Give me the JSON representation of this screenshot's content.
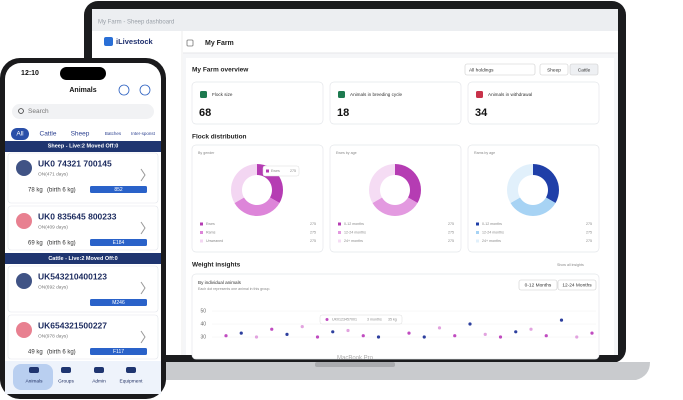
{
  "laptop": {
    "window_title": "My Farm - Sheep dashboard",
    "logo": "iLivestock",
    "page_title": "My Farm",
    "model": "MacBook Pro",
    "overview": {
      "title": "My Farm overview",
      "holdings": "All holdings",
      "filters": [
        "Sheep",
        "Cattle"
      ],
      "kpis": [
        {
          "label": "Flock size",
          "value": 68
        },
        {
          "label": "Animals in breeding cycle",
          "value": 18
        },
        {
          "label": "Animals in withdrawal",
          "value": 34
        }
      ]
    },
    "distribution": {
      "title": "Flock distribution",
      "charts": [
        {
          "type": "donut",
          "title": "By gender",
          "categories": [
            "Ewes",
            "Rams",
            "Unweaned"
          ],
          "values": [
            275,
            275,
            275
          ],
          "colors": [
            "#b53cb3",
            "#dd85d9",
            "#f3d6f2"
          ],
          "tooltip": {
            "label": "Ewes",
            "value": 275
          }
        },
        {
          "type": "donut",
          "title": "Ewes by age",
          "categories": [
            "0-12 months",
            "12-24 months",
            "24+ months"
          ],
          "values": [
            275,
            275,
            275
          ],
          "colors": [
            "#b53cb3",
            "#e39ae0",
            "#f5dcf4"
          ]
        },
        {
          "type": "donut",
          "title": "Rams by age",
          "categories": [
            "0-12 months",
            "12-24 months",
            "24+ months"
          ],
          "values": [
            275,
            275,
            275
          ],
          "colors": [
            "#1f3fa8",
            "#a7d3f4",
            "#e1f0fb"
          ]
        }
      ]
    },
    "weight": {
      "title": "Weight insights",
      "link": "Show all insights",
      "chart": {
        "type": "scatter",
        "title": "By individual animals",
        "subtitle": "Each dot represents one animal in this group.",
        "ranges": [
          "0-12 Months",
          "12-24 Months"
        ],
        "ylim": [
          30,
          50
        ],
        "yticks": [
          50,
          40,
          30
        ],
        "values": [
          31,
          33,
          30,
          36,
          32,
          38,
          30,
          34,
          35,
          31,
          30,
          42,
          33,
          30,
          37,
          31,
          40,
          32,
          30,
          34,
          36,
          31,
          43,
          30,
          33
        ],
        "colors": [
          "#c04bc0",
          "#2d3f9e",
          "#e2a3df"
        ],
        "tooltip": {
          "id": "UK0123457001",
          "age": "3 months",
          "weight": "35 kg"
        }
      }
    }
  },
  "phone": {
    "time": "12:10",
    "title": "Animals",
    "search": "Search",
    "tabs": [
      "All",
      "Cattle",
      "Sheep",
      "Batches",
      "Inter-sponst"
    ],
    "groups": [
      {
        "header": "Sheep - Live:2 Moved Off:0",
        "animals": [
          {
            "id": "UK0 74321 700145",
            "days": "ON(471 days)",
            "weight": "78 kg",
            "birth": "(birth 6 kg)",
            "tag": "852"
          },
          {
            "id": "UK0 835645 800233",
            "days": "ON(409 days)",
            "weight": "69 kg",
            "birth": "(birth 6 kg)",
            "tag": "E184"
          }
        ]
      },
      {
        "header": "Cattle - Live:2 Moved Off:0",
        "animals": [
          {
            "id": "UK543210400123",
            "days": "ON(692 days)",
            "tag": "M246"
          },
          {
            "id": "UK654321500227",
            "days": "ON(978 days)",
            "weight": "49 kg",
            "birth": "(birth 6 kg)",
            "tag": "F117"
          }
        ]
      }
    ],
    "nav": [
      "Animals",
      "Groups",
      "Admin",
      "Equipment"
    ]
  }
}
